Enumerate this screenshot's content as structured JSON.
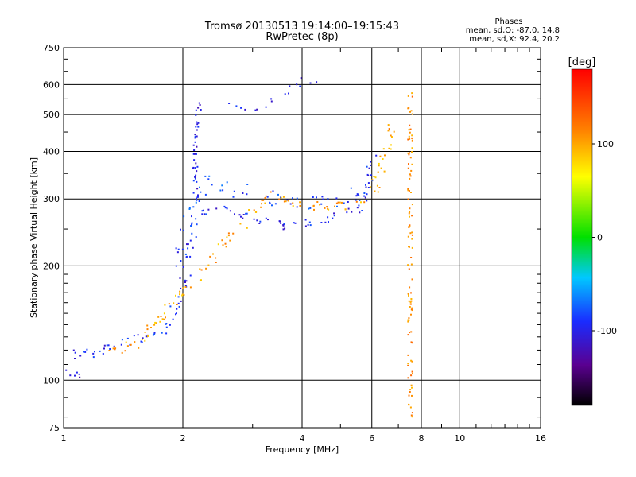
{
  "title_line1": "Tromsø 20130513 19:14:00–19:15:43",
  "title_line2": "RwPretec (8p)",
  "stats": {
    "title": "Phases",
    "o_mode": "mean, sd,O: -87.0, 14.8",
    "x_mode": "mean, sd,X:  92.4, 20.2"
  },
  "chart_data": {
    "type": "scatter",
    "xlabel": "Frequency [MHz]",
    "ylabel": "Stationary phase Virtual Height [km]",
    "x_scale": "log",
    "y_scale": "log",
    "xlim": [
      1,
      16
    ],
    "ylim": [
      75,
      750
    ],
    "x_ticks": [
      {
        "v": 1,
        "label": "1"
      },
      {
        "v": 2,
        "label": "2"
      },
      {
        "v": 4,
        "label": "4"
      },
      {
        "v": 6,
        "label": "6"
      },
      {
        "v": 8,
        "label": "8"
      },
      {
        "v": 10,
        "label": "10"
      },
      {
        "v": 16,
        "label": "16"
      }
    ],
    "y_ticks": [
      {
        "v": 75,
        "label": "75"
      },
      {
        "v": 100,
        "label": "100"
      },
      {
        "v": 200,
        "label": "200"
      },
      {
        "v": 300,
        "label": "300"
      },
      {
        "v": 400,
        "label": "400"
      },
      {
        "v": 500,
        "label": "500"
      },
      {
        "v": 600,
        "label": "600"
      },
      {
        "v": 750,
        "label": "750"
      }
    ],
    "grid": true,
    "colorbar": {
      "label": "[deg]",
      "range": [
        -180,
        180
      ],
      "ticks": [
        {
          "v": 100,
          "label": "100"
        },
        {
          "v": 0,
          "label": "0"
        },
        {
          "v": -100,
          "label": "-100"
        }
      ]
    },
    "traces": [
      {
        "note": "O-mode E/F1 trace",
        "phase": -95,
        "spread": 6,
        "density": 6,
        "points": [
          [
            1.0,
            116
          ],
          [
            1.2,
            118
          ],
          [
            1.35,
            124
          ],
          [
            1.5,
            130
          ],
          [
            1.6,
            128
          ],
          [
            1.7,
            130
          ],
          [
            1.8,
            136
          ],
          [
            1.9,
            150
          ],
          [
            2.0,
            170
          ],
          [
            2.05,
            200
          ],
          [
            2.1,
            235
          ],
          [
            2.15,
            260
          ],
          [
            2.2,
            275
          ],
          [
            2.4,
            282
          ],
          [
            2.6,
            280
          ],
          [
            2.8,
            274
          ],
          [
            3.0,
            264
          ],
          [
            3.3,
            258
          ],
          [
            3.6,
            256
          ],
          [
            4.0,
            259
          ],
          [
            4.5,
            264
          ],
          [
            5.0,
            272
          ],
          [
            5.4,
            280
          ],
          [
            5.7,
            292
          ],
          [
            5.85,
            320
          ],
          [
            5.95,
            360
          ],
          [
            6.0,
            400
          ]
        ]
      },
      {
        "note": "O-mode spread upper trace",
        "phase": -85,
        "spread": 10,
        "density": 5,
        "points": [
          [
            1.9,
            200
          ],
          [
            2.0,
            240
          ],
          [
            2.1,
            290
          ],
          [
            2.2,
            320
          ],
          [
            2.4,
            330
          ],
          [
            2.7,
            320
          ],
          [
            3.0,
            305
          ],
          [
            3.5,
            300
          ],
          [
            4.0,
            295
          ],
          [
            4.5,
            292
          ],
          [
            5.0,
            300
          ],
          [
            5.5,
            310
          ],
          [
            5.8,
            340
          ]
        ]
      },
      {
        "note": "X-mode trace",
        "phase": 100,
        "spread": 6,
        "density": 6,
        "points": [
          [
            1.3,
            118
          ],
          [
            1.4,
            118
          ],
          [
            1.5,
            124
          ],
          [
            1.6,
            130
          ],
          [
            3.3,
            310
          ],
          [
            3.6,
            300
          ],
          [
            4.0,
            290
          ],
          [
            4.5,
            285
          ],
          [
            5.0,
            287
          ],
          [
            5.5,
            290
          ],
          [
            5.8,
            300
          ],
          [
            6.1,
            320
          ],
          [
            6.3,
            360
          ],
          [
            6.5,
            400
          ],
          [
            6.6,
            440
          ],
          [
            6.7,
            480
          ]
        ]
      },
      {
        "note": "F region vertical spread near 2.15 MHz",
        "phase": -100,
        "spread": 3,
        "density": 8,
        "points": [
          [
            2.15,
            300
          ],
          [
            2.15,
            340
          ],
          [
            2.15,
            380
          ],
          [
            2.16,
            420
          ],
          [
            2.17,
            460
          ],
          [
            2.18,
            500
          ],
          [
            2.2,
            540
          ]
        ]
      },
      {
        "note": "Low altitude patch",
        "phase": -110,
        "spread": 3,
        "density": 3,
        "points": [
          [
            1.0,
            105
          ],
          [
            1.05,
            104
          ],
          [
            1.1,
            103
          ],
          [
            1.15,
            102
          ]
        ]
      },
      {
        "note": "High altitude echoes",
        "phase": -100,
        "spread": 5,
        "density": 3,
        "points": [
          [
            2.6,
            530
          ],
          [
            3.0,
            520
          ],
          [
            3.3,
            530
          ],
          [
            3.6,
            560
          ],
          [
            4.0,
            610
          ],
          [
            4.4,
            620
          ]
        ]
      },
      {
        "note": "Vertical line near 7.5 MHz",
        "phase": 110,
        "spread": 3,
        "density": 6,
        "points": [
          [
            7.5,
            80
          ],
          [
            7.5,
            120
          ],
          [
            7.5,
            160
          ],
          [
            7.5,
            200
          ],
          [
            7.5,
            260
          ],
          [
            7.5,
            320
          ],
          [
            7.5,
            400
          ],
          [
            7.5,
            500
          ],
          [
            7.5,
            580
          ]
        ]
      }
    ]
  }
}
